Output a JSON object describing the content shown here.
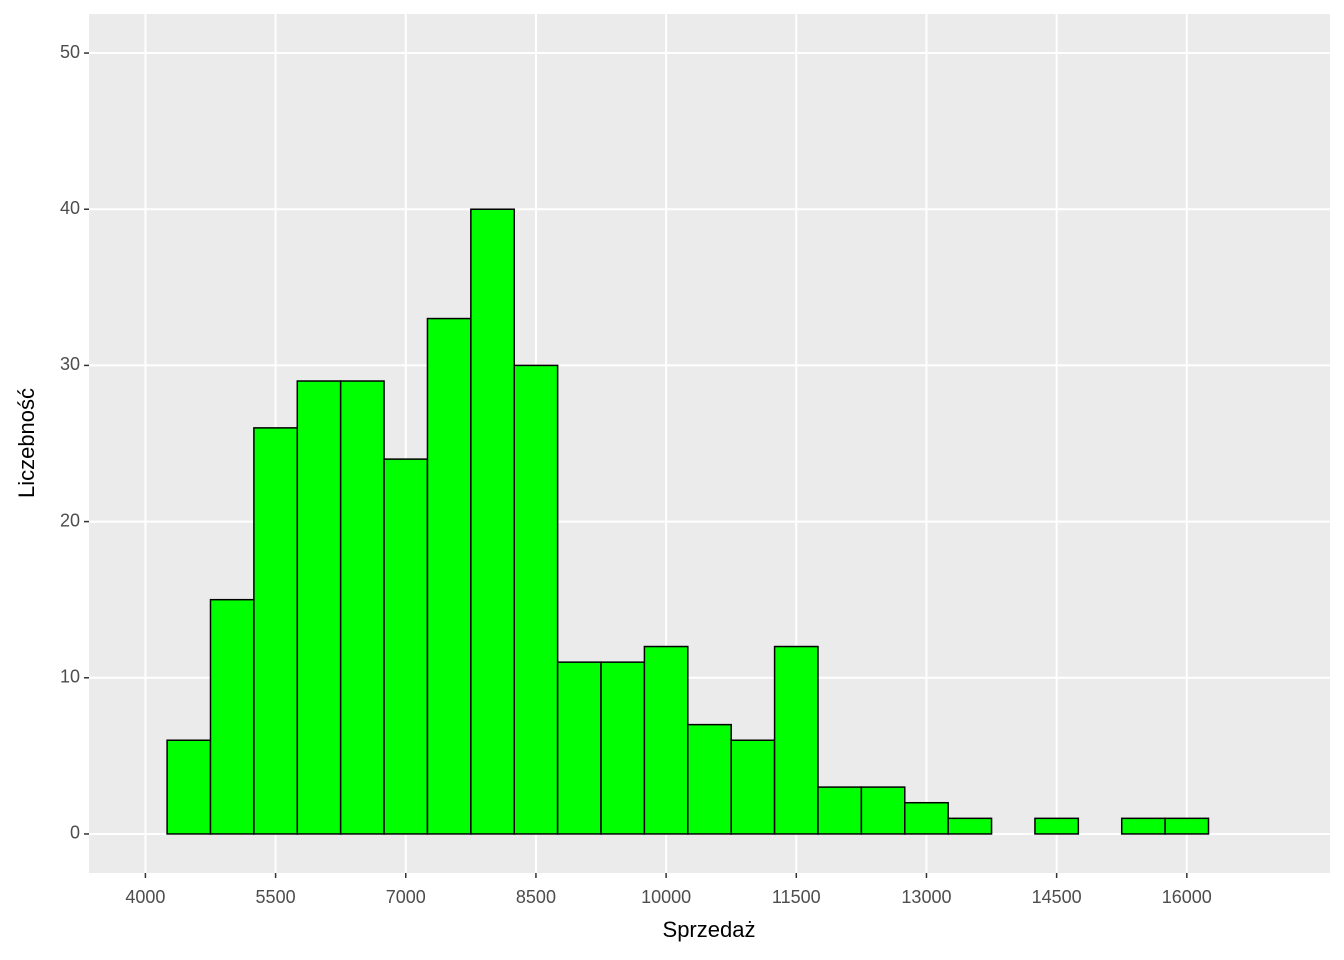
{
  "chart_data": {
    "type": "histogram",
    "x_label": "Sprzedaż",
    "y_label": "Liczebność",
    "bins": [
      4250,
      4750,
      5250,
      5750,
      6250,
      6750,
      7250,
      7750,
      8250,
      8750,
      9250,
      9750,
      10250,
      10750,
      11250,
      11750,
      12250,
      12750,
      13250,
      13750,
      14250,
      14750,
      15250,
      15750,
      16250,
      16750
    ],
    "counts": [
      6,
      15,
      26,
      29,
      29,
      24,
      33,
      40,
      30,
      11,
      11,
      12,
      7,
      6,
      12,
      3,
      3,
      2,
      1,
      0,
      1,
      0,
      1,
      1,
      0
    ],
    "color": "#00ff00",
    "edgecolor": "#000000",
    "xlim": [
      3350,
      17650
    ],
    "xticks": [
      4000,
      5500,
      7000,
      8500,
      10000,
      11500,
      13000,
      14500,
      16000
    ],
    "ylim": [
      -2.5,
      52.5
    ],
    "yticks": [
      0,
      10,
      20,
      30,
      40,
      50
    ],
    "grid": true
  }
}
